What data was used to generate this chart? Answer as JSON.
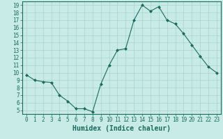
{
  "x": [
    0,
    1,
    2,
    3,
    4,
    5,
    6,
    7,
    8,
    9,
    10,
    11,
    12,
    13,
    14,
    15,
    16,
    17,
    18,
    19,
    20,
    21,
    22,
    23
  ],
  "y": [
    9.7,
    9.0,
    8.8,
    8.7,
    7.0,
    6.2,
    5.2,
    5.2,
    4.8,
    8.5,
    11.0,
    13.0,
    13.2,
    17.0,
    19.0,
    18.2,
    18.8,
    17.0,
    16.5,
    15.2,
    13.7,
    12.2,
    10.8,
    10.0
  ],
  "xlabel": "Humidex (Indice chaleur)",
  "xlim": [
    -0.5,
    23.5
  ],
  "ylim": [
    4.5,
    19.5
  ],
  "yticks": [
    5,
    6,
    7,
    8,
    9,
    10,
    11,
    12,
    13,
    14,
    15,
    16,
    17,
    18,
    19
  ],
  "xticks": [
    0,
    1,
    2,
    3,
    4,
    5,
    6,
    7,
    8,
    9,
    10,
    11,
    12,
    13,
    14,
    15,
    16,
    17,
    18,
    19,
    20,
    21,
    22,
    23
  ],
  "xtick_labels": [
    "0",
    "1",
    "2",
    "3",
    "4",
    "5",
    "6",
    "7",
    "8",
    "9",
    "10",
    "11",
    "12",
    "13",
    "14",
    "15",
    "16",
    "17",
    "18",
    "19",
    "20",
    "21",
    "22",
    "23"
  ],
  "line_color": "#1a6b5c",
  "marker": "D",
  "marker_size": 2,
  "bg_color": "#c8ebe8",
  "grid_color": "#a8d4d0",
  "axis_color": "#1a6b5c",
  "tick_color": "#1a6b5c",
  "label_color": "#1a6b5c",
  "xlabel_fontsize": 7,
  "tick_fontsize": 5.5
}
